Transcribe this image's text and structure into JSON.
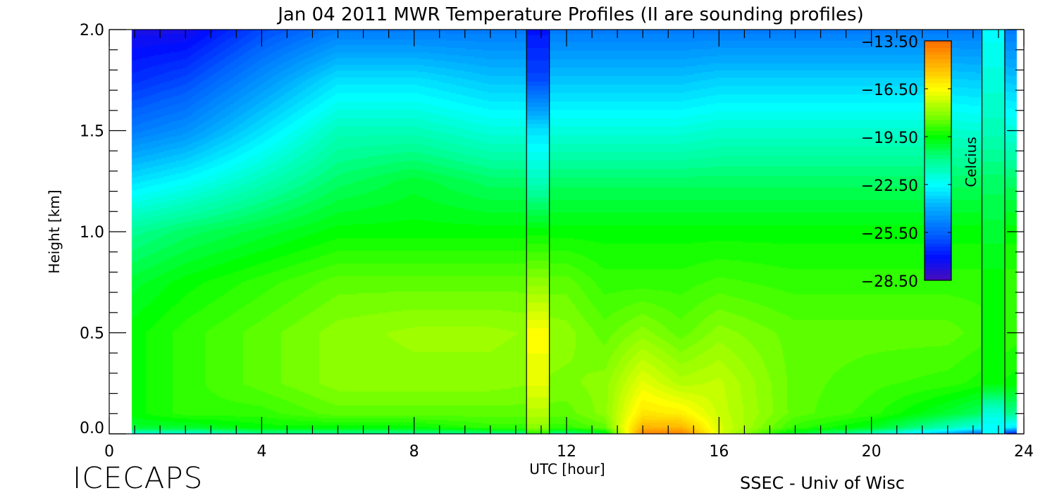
{
  "chart_data": {
    "type": "heatmap",
    "title": "Jan 04 2011 MWR Temperature Profiles (II are sounding profiles)",
    "xlabel": "UTC [hour]",
    "ylabel": "Height [km]",
    "xlim": [
      0,
      24
    ],
    "ylim": [
      0,
      2.0
    ],
    "x_ticks": [
      "0",
      "4",
      "8",
      "12",
      "16",
      "20",
      "24"
    ],
    "y_ticks": [
      "0.0",
      "0.5",
      "1.0",
      "1.5",
      "2.0"
    ],
    "colorbar": {
      "label": "Celcius",
      "range": [
        -28.5,
        -13.5
      ],
      "ticks": [
        "-13.50",
        "-16.50",
        "-19.50",
        "-22.50",
        "-25.50",
        "-28.50"
      ],
      "colormap": [
        [
          -28.5,
          "#4a0cb8"
        ],
        [
          -27.0,
          "#0010ff"
        ],
        [
          -25.5,
          "#0064ff"
        ],
        [
          -24.0,
          "#00a8ff"
        ],
        [
          -22.5,
          "#00ffff"
        ],
        [
          -21.0,
          "#00ff96"
        ],
        [
          -19.5,
          "#00ff00"
        ],
        [
          -18.0,
          "#8cff00"
        ],
        [
          -16.5,
          "#ffff00"
        ],
        [
          -15.0,
          "#ffb400"
        ],
        [
          -13.5,
          "#ff7000"
        ]
      ]
    },
    "heights_km": [
      0,
      0.03,
      0.1,
      0.25,
      0.5,
      0.75,
      1.0,
      1.25,
      1.5,
      1.75,
      2.0
    ],
    "mwr_start_hour": 0.6,
    "mwr_end_hour": 23.8,
    "mwr_profiles": [
      {
        "hour": 0.6,
        "temps": [
          -22,
          -20,
          -19.5,
          -19.5,
          -19.5,
          -20,
          -21,
          -23,
          -25,
          -26.5,
          -27.5
        ]
      },
      {
        "hour": 2,
        "temps": [
          -22,
          -20,
          -19,
          -19,
          -19,
          -19.5,
          -20.5,
          -22.5,
          -24.5,
          -26,
          -27.5
        ]
      },
      {
        "hour": 4,
        "temps": [
          -21,
          -19.5,
          -19,
          -18.5,
          -18.5,
          -19,
          -20,
          -21.5,
          -23,
          -24.5,
          -26
        ]
      },
      {
        "hour": 6,
        "temps": [
          -21,
          -19.5,
          -18.5,
          -18,
          -18,
          -18.5,
          -19.5,
          -20.5,
          -21.5,
          -23,
          -25
        ]
      },
      {
        "hour": 8,
        "temps": [
          -21,
          -19.5,
          -18.5,
          -18,
          -17.8,
          -18.5,
          -19.5,
          -20,
          -21.5,
          -23,
          -25
        ]
      },
      {
        "hour": 10,
        "temps": [
          -21,
          -19,
          -18.5,
          -18,
          -17.8,
          -18.5,
          -19.5,
          -20.5,
          -22,
          -23.5,
          -25
        ]
      },
      {
        "hour": 12,
        "temps": [
          -21,
          -19,
          -18.5,
          -18.2,
          -18,
          -18.5,
          -19.5,
          -20.5,
          -22,
          -23.5,
          -25
        ]
      },
      {
        "hour": 13,
        "temps": [
          -20,
          -18.5,
          -18,
          -18,
          -18.5,
          -19,
          -19.5,
          -20.5,
          -22,
          -23.5,
          -25
        ]
      },
      {
        "hour": 14,
        "temps": [
          -14,
          -15,
          -16,
          -16.8,
          -18,
          -19,
          -19.5,
          -20.5,
          -22,
          -23.5,
          -25
        ]
      },
      {
        "hour": 15,
        "temps": [
          -13.8,
          -15,
          -16.2,
          -17.5,
          -18.5,
          -19,
          -19.5,
          -20.5,
          -22,
          -23.5,
          -25
        ]
      },
      {
        "hour": 16,
        "temps": [
          -17,
          -17,
          -17.2,
          -17.3,
          -18,
          -18.8,
          -19.5,
          -20.5,
          -21.8,
          -23.3,
          -25
        ]
      },
      {
        "hour": 18,
        "temps": [
          -20,
          -19,
          -18.5,
          -18.5,
          -18.5,
          -19,
          -19.5,
          -20.5,
          -21.8,
          -23.3,
          -25
        ]
      },
      {
        "hour": 20,
        "temps": [
          -21.5,
          -19.8,
          -19,
          -18.8,
          -18.5,
          -19,
          -19.5,
          -20.5,
          -21.8,
          -23.3,
          -25
        ]
      },
      {
        "hour": 22,
        "temps": [
          -24,
          -21.5,
          -20,
          -19,
          -18.5,
          -19,
          -19.5,
          -20.5,
          -21.8,
          -23.3,
          -25
        ]
      },
      {
        "hour": 23.8,
        "temps": [
          -27,
          -23,
          -21,
          -19.5,
          -19,
          -19,
          -19.5,
          -20.5,
          -22,
          -23.5,
          -25
        ]
      }
    ],
    "sounding_profiles": [
      {
        "start_hour": 10.95,
        "end_hour": 11.55,
        "temps": [
          -19,
          -18,
          -17.5,
          -16.8,
          -16.5,
          -18,
          -19.5,
          -21.5,
          -23,
          -26,
          -27
        ]
      },
      {
        "start_hour": 22.9,
        "end_hour": 23.5,
        "temps": [
          -22.5,
          -22.5,
          -22,
          -19.5,
          -19.5,
          -19.5,
          -20,
          -20.5,
          -21.5,
          -22,
          -22.5
        ]
      }
    ]
  },
  "footer": {
    "left": "ICECAPS",
    "right": "SSEC - Univ of Wisc"
  }
}
